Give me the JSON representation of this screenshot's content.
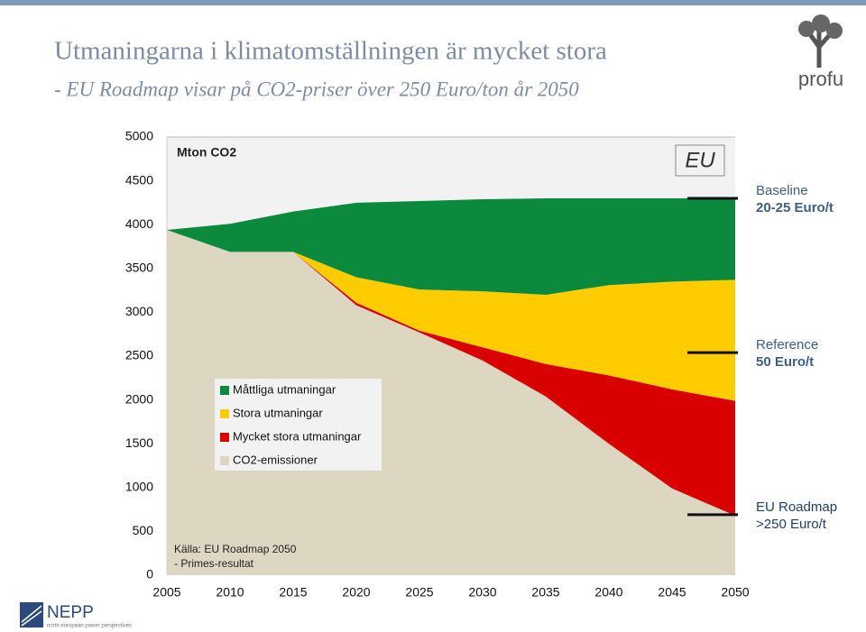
{
  "title": "Utmaningarna i klimatomställningen är mycket stora",
  "subtitle": "- EU Roadmap visar på CO2-priser över 250 Euro/ton år 2050",
  "logos": {
    "profu": "profu",
    "nepp": "NEPP",
    "nepp_tagline": "north european power perspectives"
  },
  "chart_data": {
    "type": "stacked_area",
    "unit_label": "Mton CO2",
    "region_label": "EU",
    "x": [
      2005,
      2010,
      2015,
      2020,
      2025,
      2030,
      2035,
      2040,
      2045,
      2050
    ],
    "series": [
      {
        "name": "Måttliga utmaningar",
        "color": "#0b8a3e",
        "values": [
          0,
          320,
          460,
          850,
          1010,
          1050,
          1100,
          990,
          950,
          930
        ]
      },
      {
        "name": "Stora utmaningar",
        "color": "#ffcc00",
        "values": [
          0,
          0,
          0,
          290,
          470,
          640,
          790,
          1030,
          1230,
          1380
        ]
      },
      {
        "name": "Mycket stora utmaningar",
        "color": "#d80000",
        "values": [
          0,
          0,
          0,
          30,
          20,
          150,
          370,
          780,
          1130,
          1310
        ]
      },
      {
        "name": "CO2-emissioner",
        "color": "#ddd6c1",
        "values": [
          3940,
          3690,
          3690,
          3080,
          2770,
          2450,
          2040,
          1500,
          990,
          680
        ]
      }
    ],
    "xlim": [
      2005,
      2050
    ],
    "xticks": [
      2005,
      2010,
      2015,
      2020,
      2025,
      2030,
      2035,
      2040,
      2045,
      2050
    ],
    "ylim": [
      0,
      5000
    ],
    "yticks": [
      0,
      500,
      1000,
      1500,
      2000,
      2500,
      3000,
      3500,
      4000,
      4500,
      5000
    ],
    "annotations": [
      {
        "lines": [
          "Baseline",
          "20-25 Euro/t"
        ],
        "level": 4300
      },
      {
        "lines": [
          "Reference",
          "50 Euro/t"
        ],
        "level": 2540
      },
      {
        "lines": [
          "EU Roadmap",
          ">250 Euro/t"
        ],
        "level": 690
      }
    ],
    "source": [
      "Källa: EU Roadmap 2050",
      "- Primes-resultat"
    ]
  }
}
